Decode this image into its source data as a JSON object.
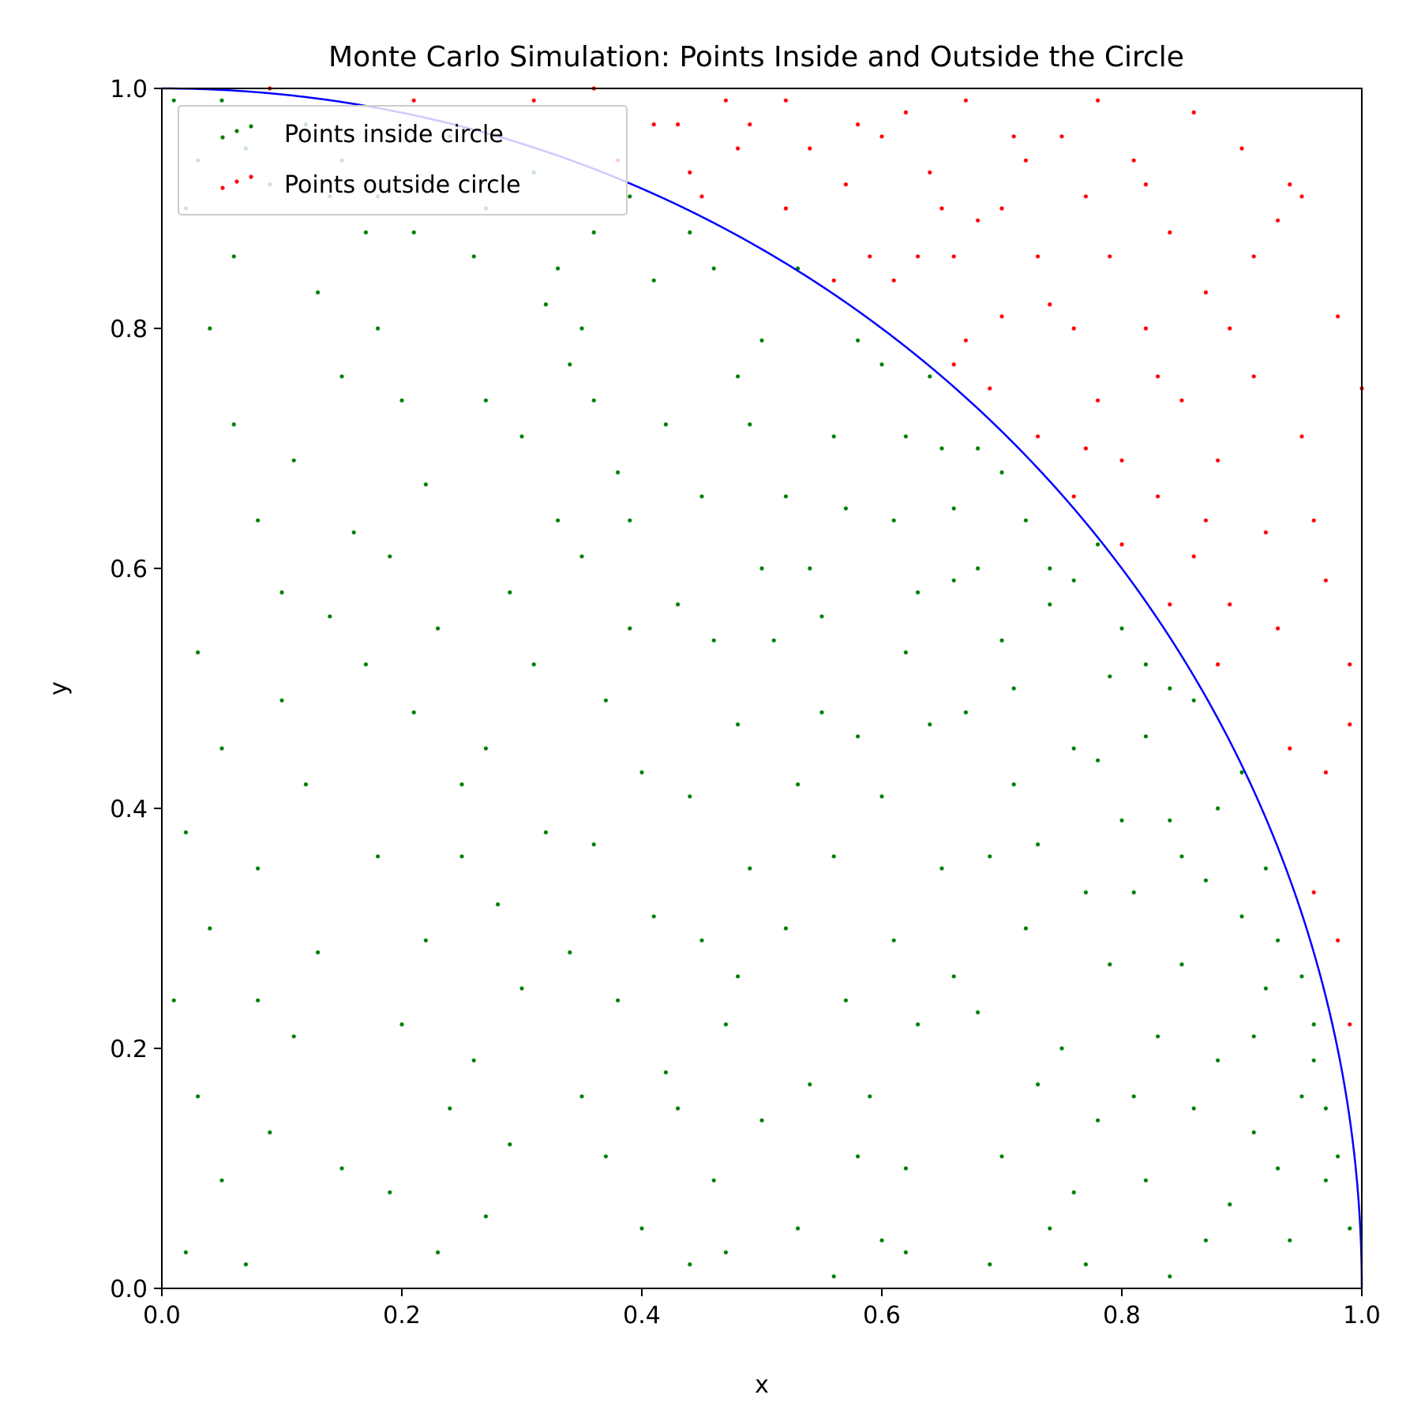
{
  "chart_data": {
    "type": "scatter",
    "title": "Monte Carlo Simulation: Points Inside and Outside the Circle",
    "xlabel": "x",
    "ylabel": "y",
    "xlim": [
      0.0,
      1.0
    ],
    "ylim": [
      0.0,
      1.0
    ],
    "xticks": [
      "0.0",
      "0.2",
      "0.4",
      "0.6",
      "0.8",
      "1.0"
    ],
    "yticks": [
      "0.0",
      "0.2",
      "0.4",
      "0.6",
      "0.8",
      "1.0"
    ],
    "grid": false,
    "legend_position": "upper-left",
    "curve": {
      "description": "quarter circle x^2 + y^2 = 1",
      "color": "#0000ff"
    },
    "series": [
      {
        "name": "Points inside circle",
        "color": "#008000",
        "points": [
          [
            0.01,
            0.99
          ],
          [
            0.03,
            0.94
          ],
          [
            0.05,
            0.99
          ],
          [
            0.07,
            0.95
          ],
          [
            0.09,
            0.92
          ],
          [
            0.12,
            0.97
          ],
          [
            0.15,
            0.94
          ],
          [
            0.18,
            0.91
          ],
          [
            0.21,
            0.88
          ],
          [
            0.24,
            0.96
          ],
          [
            0.27,
            0.9
          ],
          [
            0.31,
            0.93
          ],
          [
            0.33,
            0.85
          ],
          [
            0.36,
            0.88
          ],
          [
            0.39,
            0.91
          ],
          [
            0.41,
            0.84
          ],
          [
            0.44,
            0.88
          ],
          [
            0.46,
            0.85
          ],
          [
            0.48,
            0.76
          ],
          [
            0.5,
            0.79
          ],
          [
            0.53,
            0.85
          ],
          [
            0.56,
            0.71
          ],
          [
            0.58,
            0.79
          ],
          [
            0.6,
            0.77
          ],
          [
            0.62,
            0.71
          ],
          [
            0.64,
            0.76
          ],
          [
            0.66,
            0.65
          ],
          [
            0.68,
            0.7
          ],
          [
            0.7,
            0.68
          ],
          [
            0.72,
            0.64
          ],
          [
            0.74,
            0.6
          ],
          [
            0.76,
            0.59
          ],
          [
            0.78,
            0.62
          ],
          [
            0.8,
            0.55
          ],
          [
            0.82,
            0.52
          ],
          [
            0.84,
            0.5
          ],
          [
            0.86,
            0.49
          ],
          [
            0.88,
            0.4
          ],
          [
            0.9,
            0.43
          ],
          [
            0.92,
            0.35
          ],
          [
            0.93,
            0.29
          ],
          [
            0.95,
            0.26
          ],
          [
            0.96,
            0.19
          ],
          [
            0.97,
            0.15
          ],
          [
            0.98,
            0.11
          ],
          [
            0.99,
            0.05
          ],
          [
            0.02,
            0.9
          ],
          [
            0.04,
            0.8
          ],
          [
            0.06,
            0.72
          ],
          [
            0.08,
            0.64
          ],
          [
            0.1,
            0.58
          ],
          [
            0.03,
            0.53
          ],
          [
            0.05,
            0.45
          ],
          [
            0.02,
            0.38
          ],
          [
            0.04,
            0.3
          ],
          [
            0.01,
            0.24
          ],
          [
            0.03,
            0.16
          ],
          [
            0.05,
            0.09
          ],
          [
            0.02,
            0.03
          ],
          [
            0.07,
            0.02
          ],
          [
            0.09,
            0.13
          ],
          [
            0.11,
            0.21
          ],
          [
            0.13,
            0.28
          ],
          [
            0.08,
            0.35
          ],
          [
            0.12,
            0.42
          ],
          [
            0.1,
            0.49
          ],
          [
            0.14,
            0.56
          ],
          [
            0.16,
            0.63
          ],
          [
            0.11,
            0.69
          ],
          [
            0.15,
            0.76
          ],
          [
            0.13,
            0.83
          ],
          [
            0.17,
            0.88
          ],
          [
            0.18,
            0.8
          ],
          [
            0.2,
            0.74
          ],
          [
            0.22,
            0.67
          ],
          [
            0.19,
            0.61
          ],
          [
            0.23,
            0.55
          ],
          [
            0.21,
            0.48
          ],
          [
            0.25,
            0.42
          ],
          [
            0.18,
            0.36
          ],
          [
            0.22,
            0.29
          ],
          [
            0.2,
            0.22
          ],
          [
            0.24,
            0.15
          ],
          [
            0.19,
            0.08
          ],
          [
            0.23,
            0.03
          ],
          [
            0.27,
            0.06
          ],
          [
            0.29,
            0.12
          ],
          [
            0.26,
            0.19
          ],
          [
            0.3,
            0.25
          ],
          [
            0.28,
            0.32
          ],
          [
            0.32,
            0.38
          ],
          [
            0.27,
            0.45
          ],
          [
            0.31,
            0.52
          ],
          [
            0.29,
            0.58
          ],
          [
            0.33,
            0.64
          ],
          [
            0.3,
            0.71
          ],
          [
            0.34,
            0.77
          ],
          [
            0.32,
            0.82
          ],
          [
            0.36,
            0.74
          ],
          [
            0.38,
            0.68
          ],
          [
            0.35,
            0.61
          ],
          [
            0.39,
            0.55
          ],
          [
            0.37,
            0.49
          ],
          [
            0.4,
            0.43
          ],
          [
            0.36,
            0.37
          ],
          [
            0.41,
            0.31
          ],
          [
            0.38,
            0.24
          ],
          [
            0.42,
            0.18
          ],
          [
            0.37,
            0.11
          ],
          [
            0.4,
            0.05
          ],
          [
            0.44,
            0.02
          ],
          [
            0.46,
            0.09
          ],
          [
            0.43,
            0.15
          ],
          [
            0.47,
            0.22
          ],
          [
            0.45,
            0.29
          ],
          [
            0.49,
            0.35
          ],
          [
            0.44,
            0.41
          ],
          [
            0.48,
            0.47
          ],
          [
            0.46,
            0.54
          ],
          [
            0.5,
            0.6
          ],
          [
            0.45,
            0.66
          ],
          [
            0.49,
            0.72
          ],
          [
            0.52,
            0.66
          ],
          [
            0.54,
            0.6
          ],
          [
            0.51,
            0.54
          ],
          [
            0.55,
            0.48
          ],
          [
            0.53,
            0.42
          ],
          [
            0.56,
            0.36
          ],
          [
            0.52,
            0.3
          ],
          [
            0.57,
            0.24
          ],
          [
            0.54,
            0.17
          ],
          [
            0.58,
            0.11
          ],
          [
            0.53,
            0.05
          ],
          [
            0.56,
            0.01
          ],
          [
            0.6,
            0.04
          ],
          [
            0.62,
            0.1
          ],
          [
            0.59,
            0.16
          ],
          [
            0.63,
            0.22
          ],
          [
            0.61,
            0.29
          ],
          [
            0.65,
            0.35
          ],
          [
            0.6,
            0.41
          ],
          [
            0.64,
            0.47
          ],
          [
            0.62,
            0.53
          ],
          [
            0.66,
            0.59
          ],
          [
            0.61,
            0.64
          ],
          [
            0.65,
            0.7
          ],
          [
            0.68,
            0.6
          ],
          [
            0.7,
            0.54
          ],
          [
            0.67,
            0.48
          ],
          [
            0.71,
            0.42
          ],
          [
            0.69,
            0.36
          ],
          [
            0.72,
            0.3
          ],
          [
            0.68,
            0.23
          ],
          [
            0.73,
            0.17
          ],
          [
            0.7,
            0.11
          ],
          [
            0.74,
            0.05
          ],
          [
            0.69,
            0.02
          ],
          [
            0.76,
            0.08
          ],
          [
            0.78,
            0.14
          ],
          [
            0.75,
            0.2
          ],
          [
            0.79,
            0.27
          ],
          [
            0.77,
            0.33
          ],
          [
            0.8,
            0.39
          ],
          [
            0.76,
            0.45
          ],
          [
            0.79,
            0.51
          ],
          [
            0.74,
            0.57
          ],
          [
            0.82,
            0.46
          ],
          [
            0.84,
            0.39
          ],
          [
            0.81,
            0.33
          ],
          [
            0.85,
            0.27
          ],
          [
            0.83,
            0.21
          ],
          [
            0.86,
            0.15
          ],
          [
            0.82,
            0.09
          ],
          [
            0.87,
            0.04
          ],
          [
            0.84,
            0.01
          ],
          [
            0.89,
            0.07
          ],
          [
            0.91,
            0.13
          ],
          [
            0.88,
            0.19
          ],
          [
            0.92,
            0.25
          ],
          [
            0.9,
            0.31
          ],
          [
            0.93,
            0.1
          ],
          [
            0.95,
            0.16
          ],
          [
            0.94,
            0.04
          ],
          [
            0.97,
            0.09
          ],
          [
            0.96,
            0.22
          ],
          [
            0.87,
            0.34
          ],
          [
            0.14,
            0.91
          ],
          [
            0.26,
            0.86
          ],
          [
            0.06,
            0.86
          ],
          [
            0.35,
            0.8
          ],
          [
            0.42,
            0.72
          ],
          [
            0.57,
            0.65
          ],
          [
            0.63,
            0.58
          ],
          [
            0.71,
            0.5
          ],
          [
            0.78,
            0.44
          ],
          [
            0.85,
            0.36
          ],
          [
            0.91,
            0.21
          ],
          [
            0.25,
            0.36
          ],
          [
            0.34,
            0.28
          ],
          [
            0.15,
            0.1
          ],
          [
            0.08,
            0.24
          ],
          [
            0.5,
            0.14
          ],
          [
            0.58,
            0.46
          ],
          [
            0.66,
            0.26
          ],
          [
            0.73,
            0.37
          ],
          [
            0.81,
            0.16
          ],
          [
            0.43,
            0.57
          ],
          [
            0.39,
            0.64
          ],
          [
            0.17,
            0.52
          ],
          [
            0.27,
            0.74
          ],
          [
            0.47,
            0.03
          ],
          [
            0.62,
            0.03
          ],
          [
            0.77,
            0.02
          ],
          [
            0.55,
            0.56
          ],
          [
            0.48,
            0.26
          ],
          [
            0.35,
            0.16
          ]
        ]
      },
      {
        "name": "Points outside circle",
        "color": "#ff0000",
        "points": [
          [
            0.09,
            1.0
          ],
          [
            0.21,
            0.99
          ],
          [
            0.31,
            0.99
          ],
          [
            0.36,
            1.0
          ],
          [
            0.38,
            0.94
          ],
          [
            0.43,
            0.97
          ],
          [
            0.44,
            0.93
          ],
          [
            0.47,
            0.99
          ],
          [
            0.49,
            0.97
          ],
          [
            0.52,
            0.9
          ],
          [
            0.54,
            0.95
          ],
          [
            0.57,
            0.92
          ],
          [
            0.59,
            0.86
          ],
          [
            0.61,
            0.84
          ],
          [
            0.62,
            0.98
          ],
          [
            0.64,
            0.93
          ],
          [
            0.65,
            0.9
          ],
          [
            0.66,
            0.86
          ],
          [
            0.67,
            0.79
          ],
          [
            0.68,
            0.89
          ],
          [
            0.69,
            0.75
          ],
          [
            0.7,
            0.9
          ],
          [
            0.72,
            0.94
          ],
          [
            0.73,
            0.86
          ],
          [
            0.74,
            0.82
          ],
          [
            0.75,
            0.96
          ],
          [
            0.76,
            0.8
          ],
          [
            0.77,
            0.91
          ],
          [
            0.78,
            0.74
          ],
          [
            0.79,
            0.86
          ],
          [
            0.8,
            0.69
          ],
          [
            0.81,
            0.94
          ],
          [
            0.82,
            0.8
          ],
          [
            0.83,
            0.66
          ],
          [
            0.84,
            0.88
          ],
          [
            0.85,
            0.74
          ],
          [
            0.86,
            0.61
          ],
          [
            0.87,
            0.83
          ],
          [
            0.88,
            0.69
          ],
          [
            0.89,
            0.57
          ],
          [
            0.9,
            0.95
          ],
          [
            0.91,
            0.76
          ],
          [
            0.92,
            0.63
          ],
          [
            0.93,
            0.89
          ],
          [
            0.94,
            0.45
          ],
          [
            0.95,
            0.71
          ],
          [
            0.96,
            0.33
          ],
          [
            0.97,
            0.59
          ],
          [
            0.98,
            0.81
          ],
          [
            0.99,
            0.52
          ],
          [
            1.0,
            0.75
          ],
          [
            0.99,
            0.22
          ],
          [
            0.98,
            0.29
          ],
          [
            0.95,
            0.91
          ],
          [
            0.88,
            0.52
          ],
          [
            0.83,
            0.76
          ],
          [
            0.77,
            0.7
          ],
          [
            0.73,
            0.71
          ],
          [
            0.7,
            0.81
          ],
          [
            0.66,
            0.77
          ],
          [
            0.63,
            0.86
          ],
          [
            0.6,
            0.96
          ],
          [
            0.56,
            0.84
          ],
          [
            0.52,
            0.99
          ],
          [
            0.48,
            0.95
          ],
          [
            0.45,
            0.91
          ],
          [
            0.41,
            0.97
          ],
          [
            0.86,
            0.98
          ],
          [
            0.91,
            0.86
          ],
          [
            0.96,
            0.64
          ],
          [
            0.93,
            0.55
          ],
          [
            0.87,
            0.64
          ],
          [
            0.84,
            0.57
          ],
          [
            0.8,
            0.62
          ],
          [
            0.76,
            0.66
          ],
          [
            0.82,
            0.92
          ],
          [
            0.89,
            0.8
          ],
          [
            0.94,
            0.92
          ],
          [
            0.99,
            0.47
          ],
          [
            0.97,
            0.43
          ],
          [
            0.78,
            0.99
          ],
          [
            0.71,
            0.96
          ],
          [
            0.67,
            0.99
          ],
          [
            0.58,
            0.97
          ]
        ]
      }
    ]
  }
}
